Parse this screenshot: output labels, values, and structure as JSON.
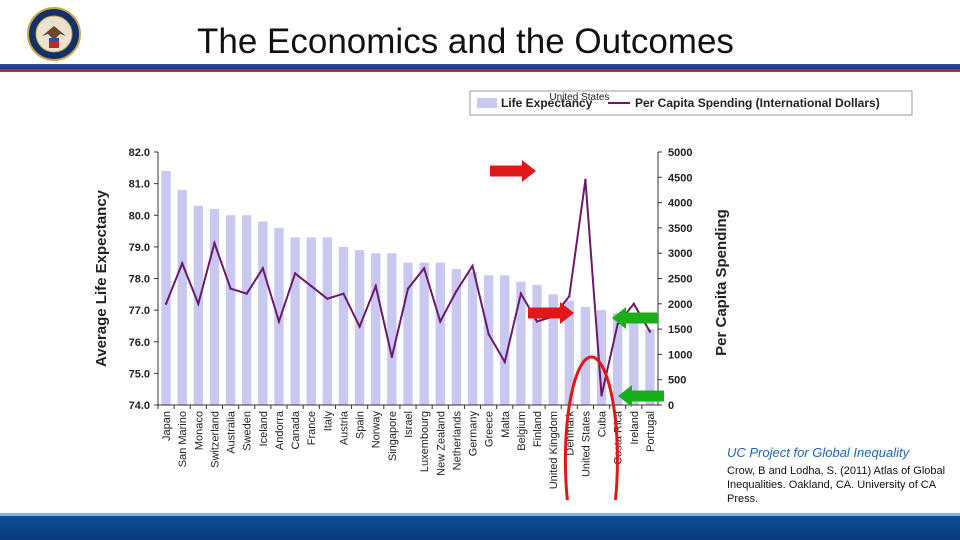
{
  "slide": {
    "title": "The Economics and the Outcomes",
    "source_title": "UC Project for Global Inequality",
    "source_text": "Crow, B and Lodha, S. (2011) Atlas of Global Inequalities. Oakland, CA. University of CA Press."
  },
  "chart_data": {
    "type": "bar",
    "categories": [
      "Japan",
      "San Marino",
      "Monaco",
      "Switzerland",
      "Australia",
      "Sweden",
      "Iceland",
      "Andorra",
      "Canada",
      "France",
      "Italy",
      "Austria",
      "Spain",
      "Norway",
      "Singapore",
      "Israel",
      "Luxembourg",
      "New Zealand",
      "Netherlands",
      "Germany",
      "Greece",
      "Malta",
      "Belgium",
      "Finland",
      "United Kingdom",
      "Denmark",
      "United States",
      "Cuba",
      "Costa Rica",
      "Ireland",
      "Portugal"
    ],
    "series": [
      {
        "name": "Life Expectancy",
        "axis": "left",
        "type": "bar",
        "color": "#c8c8f0",
        "values": [
          81.4,
          80.8,
          80.3,
          80.2,
          80.0,
          80.0,
          79.8,
          79.6,
          79.3,
          79.3,
          79.3,
          79.0,
          78.9,
          78.8,
          78.8,
          78.5,
          78.5,
          78.5,
          78.3,
          78.2,
          78.1,
          78.1,
          77.9,
          77.8,
          77.5,
          77.3,
          77.1,
          77.0,
          76.9,
          76.6,
          76.4
        ]
      },
      {
        "name": "Per Capita Spending (International Dollars)",
        "axis": "right",
        "type": "line",
        "color": "#6b1a6b",
        "values": [
          2000,
          2800,
          2000,
          3200,
          2300,
          2200,
          2700,
          1650,
          2600,
          2350,
          2100,
          2200,
          1550,
          2350,
          950,
          2300,
          2700,
          1650,
          2250,
          2750,
          1400,
          850,
          2200,
          1650,
          1750,
          2150,
          4450,
          190,
          1600,
          2000,
          1450
        ]
      }
    ],
    "y_left": {
      "label": "Average Life Expectancy",
      "min": 74.0,
      "max": 82.0,
      "ticks": [
        "74.0",
        "75.0",
        "76.0",
        "77.0",
        "78.0",
        "79.0",
        "80.0",
        "81.0",
        "82.0"
      ]
    },
    "y_right": {
      "label": "Per Capita Spending",
      "min": 0,
      "max": 5000,
      "ticks": [
        "0",
        "500",
        "1000",
        "1500",
        "2000",
        "2500",
        "3000",
        "3500",
        "4000",
        "4500",
        "5000"
      ]
    },
    "annotations": [
      {
        "text": "United States"
      }
    ],
    "legend": {
      "position": "top-right",
      "entries": [
        "Life Expectancy",
        "Per Capita Spending (International Dollars)"
      ]
    }
  }
}
